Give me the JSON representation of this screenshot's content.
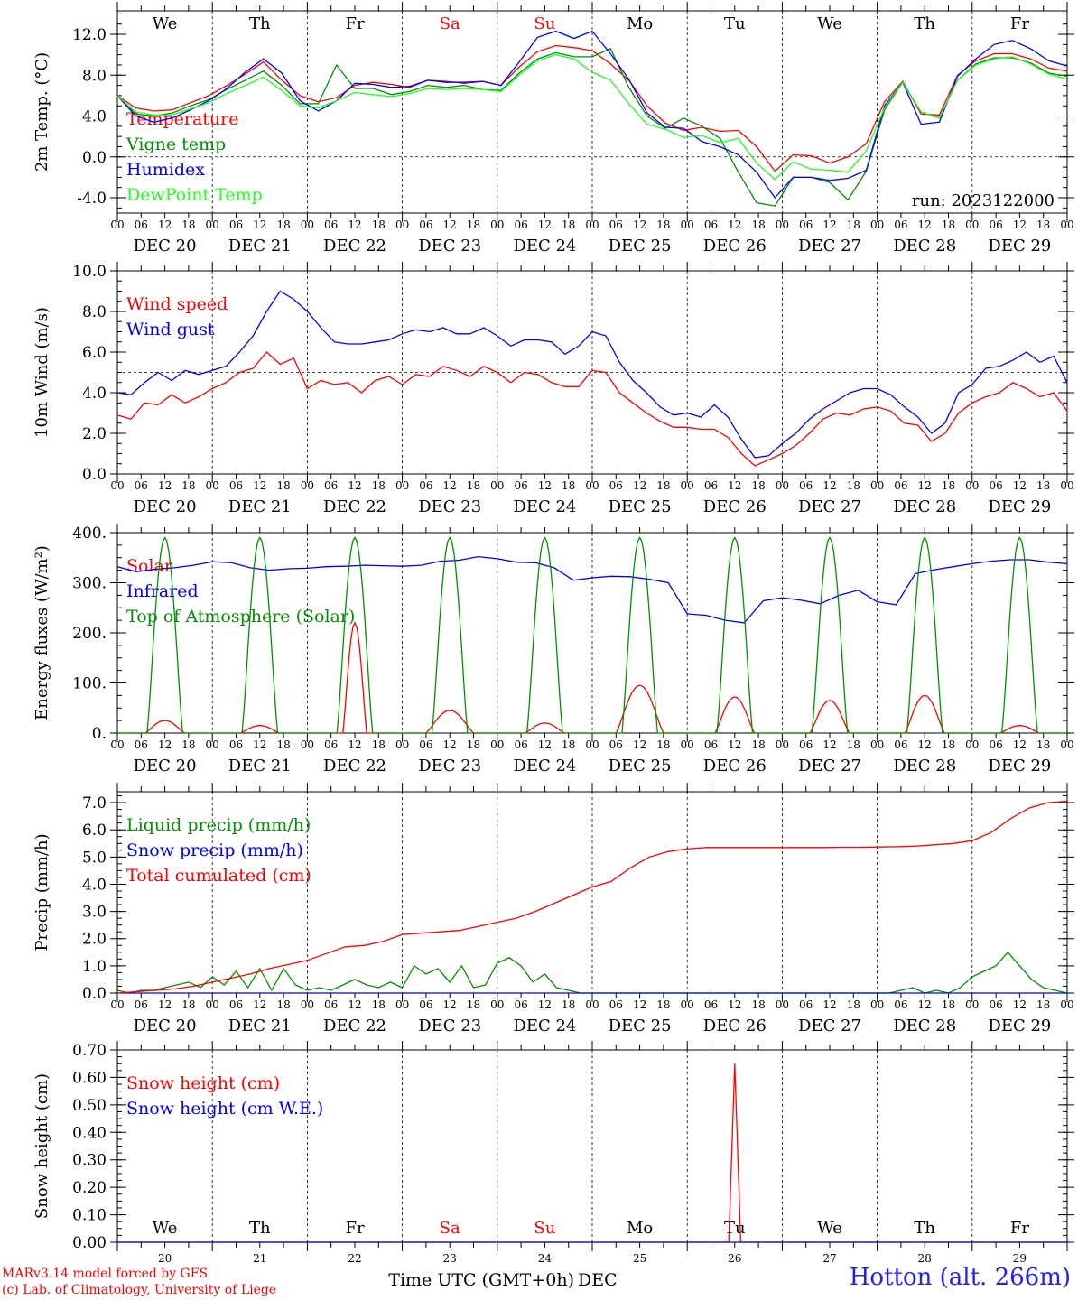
{
  "run_label": "run: 2023122000",
  "footer": {
    "model": "MARv3.14 model forced by GFS",
    "credit": "(c) Lab. of Climatology, University of Liege",
    "station": "Hotton (alt. 266m)",
    "time_axis_label": "Time UTC (GMT+0h)",
    "month_label": "DEC"
  },
  "day_letters": [
    "We",
    "Th",
    "Fr",
    "Sa",
    "Su",
    "Mo",
    "Tu",
    "We",
    "Th",
    "Fr"
  ],
  "weekend_days": [
    3,
    4
  ],
  "date_labels": [
    "DEC 20",
    "DEC 21",
    "DEC 22",
    "DEC 23",
    "DEC 24",
    "DEC 25",
    "DEC 26",
    "DEC 27",
    "DEC 28",
    "DEC 29"
  ],
  "day_numbers": [
    "20",
    "21",
    "22",
    "23",
    "24",
    "25",
    "26",
    "27",
    "28",
    "29"
  ],
  "hour_ticks": [
    "00",
    "06",
    "12",
    "18"
  ],
  "final_hour_tick": "00",
  "colors": {
    "red": "#ff0000",
    "dark_green": "#009000",
    "blue": "#0000ff",
    "light_green": "#20ff20",
    "weekend": "#ff0000"
  },
  "chart_data": [
    {
      "type": "line",
      "id": "temp",
      "ylabel": "2m Temp. (°C)",
      "ylim": [
        -5.5,
        14.3
      ],
      "yticks": [
        -4.0,
        0.0,
        4.0,
        8.0,
        12.0
      ],
      "ytick_labels": [
        "-4.0",
        "0.0",
        "4.0",
        "8.0",
        "12.0"
      ],
      "ref_line": 0,
      "x_hours_step": 6,
      "series": [
        {
          "name": "Temperature",
          "color": "#ff0000",
          "values": [
            6.0,
            4.8,
            4.5,
            4.6,
            5.3,
            6.0,
            7.0,
            8.1,
            9.3,
            7.5,
            6.0,
            5.4,
            5.8,
            7.0,
            7.3,
            7.1,
            6.8,
            7.5,
            7.4,
            7.2,
            7.4,
            7.0,
            8.8,
            10.3,
            10.9,
            10.7,
            10.4,
            9.1,
            7.5,
            5.0,
            3.3,
            2.6,
            2.9,
            2.5,
            2.6,
            1.0,
            -1.4,
            0.2,
            0.1,
            -0.6,
            0.0,
            1.3,
            5.4,
            7.4,
            4.2,
            4.1,
            8.0,
            9.4,
            10.1,
            10.1,
            9.6,
            8.7,
            8.4
          ]
        },
        {
          "name": "Vigne temp",
          "color": "#009000",
          "values": [
            6.0,
            4.2,
            4.0,
            4.3,
            5.0,
            5.6,
            6.6,
            7.5,
            8.4,
            7.0,
            5.2,
            5.2,
            9.0,
            6.7,
            6.7,
            6.1,
            6.4,
            7.0,
            6.8,
            7.0,
            6.6,
            6.5,
            8.2,
            9.6,
            10.2,
            9.8,
            9.8,
            10.6,
            6.8,
            4.0,
            2.8,
            3.8,
            3.0,
            1.8,
            -1.5,
            -4.5,
            -4.8,
            -2.0,
            -2.0,
            -2.5,
            -4.2,
            -1.4,
            4.6,
            7.3,
            4.4,
            3.8,
            7.5,
            9.1,
            9.7,
            9.7,
            9.2,
            8.2,
            7.9
          ]
        },
        {
          "name": "Humidex",
          "color": "#0000ff",
          "values": [
            6.0,
            4.0,
            3.4,
            3.8,
            4.6,
            5.5,
            6.7,
            8.3,
            9.6,
            8.2,
            5.5,
            4.5,
            5.5,
            7.2,
            7.1,
            6.8,
            6.9,
            7.5,
            7.3,
            7.3,
            7.4,
            7.0,
            9.3,
            11.7,
            12.3,
            11.6,
            12.3,
            10.1,
            7.6,
            4.3,
            2.9,
            2.8,
            1.5,
            1.0,
            0.2,
            -1.5,
            -4.0,
            -2.0,
            -2.0,
            -2.3,
            -2.1,
            -1.3,
            5.0,
            7.3,
            3.2,
            3.4,
            7.9,
            9.6,
            11.0,
            11.4,
            10.6,
            9.4,
            8.9
          ]
        },
        {
          "name": "DewPoint Temp",
          "color": "#20ff20",
          "values": [
            6.0,
            4.4,
            4.1,
            4.1,
            4.7,
            5.3,
            6.2,
            7.0,
            7.8,
            6.5,
            5.0,
            4.8,
            5.5,
            6.3,
            6.1,
            5.9,
            6.2,
            6.7,
            6.6,
            6.7,
            6.6,
            6.4,
            8.0,
            9.4,
            10.0,
            9.6,
            8.3,
            7.5,
            5.2,
            3.2,
            2.7,
            1.9,
            2.1,
            1.4,
            1.8,
            -0.6,
            -2.2,
            -0.5,
            -1.2,
            -1.3,
            -1.5,
            0.6,
            4.8,
            7.3,
            4.4,
            3.8,
            7.5,
            9.0,
            9.6,
            9.8,
            9.1,
            8.1,
            7.6
          ]
        }
      ]
    },
    {
      "type": "line",
      "id": "wind",
      "ylabel": "10m Wind (m/s)",
      "ylim": [
        0,
        10
      ],
      "yticks": [
        0,
        2,
        4,
        6,
        8,
        10
      ],
      "ytick_labels": [
        "0.0",
        "2.0",
        "4.0",
        "6.0",
        "8.0",
        "10.0"
      ],
      "ref_line": 5,
      "x_hours_step": 6,
      "series": [
        {
          "name": "Wind speed",
          "color": "#ff0000",
          "values": [
            2.9,
            2.7,
            3.5,
            3.4,
            3.9,
            3.5,
            3.8,
            4.2,
            4.5,
            5.0,
            5.2,
            6.0,
            5.4,
            5.7,
            4.2,
            4.6,
            4.4,
            4.5,
            4.0,
            4.6,
            4.8,
            4.4,
            4.9,
            4.8,
            5.3,
            5.1,
            4.8,
            5.3,
            5.0,
            4.5,
            5.0,
            4.9,
            4.5,
            4.3,
            4.3,
            5.1,
            5.0,
            4.0,
            3.5,
            3.0,
            2.6,
            2.3,
            2.3,
            2.2,
            2.2,
            1.8,
            1.0,
            0.4,
            0.7,
            1.0,
            1.4,
            2.0,
            2.7,
            3.0,
            2.9,
            3.2,
            3.3,
            3.1,
            2.5,
            2.4,
            1.6,
            2.0,
            3.0,
            3.5,
            3.8,
            4.0,
            4.5,
            4.2,
            3.8,
            4.0,
            3.1
          ]
        },
        {
          "name": "Wind gust",
          "color": "#0000ff",
          "values": [
            4.0,
            3.9,
            4.5,
            5.0,
            4.6,
            5.1,
            4.9,
            5.1,
            5.3,
            6.0,
            6.8,
            8.0,
            9.0,
            8.6,
            8.0,
            7.2,
            6.5,
            6.4,
            6.4,
            6.5,
            6.6,
            6.9,
            7.1,
            7.0,
            7.2,
            6.9,
            6.9,
            7.2,
            6.8,
            6.3,
            6.6,
            6.6,
            6.5,
            5.9,
            6.3,
            7.0,
            6.8,
            5.5,
            4.6,
            4.0,
            3.3,
            2.9,
            3.0,
            2.8,
            3.4,
            2.8,
            1.7,
            0.8,
            0.9,
            1.5,
            2.0,
            2.7,
            3.2,
            3.6,
            4.0,
            4.2,
            4.2,
            3.9,
            3.3,
            2.8,
            2.0,
            2.5,
            4.0,
            4.4,
            5.2,
            5.3,
            5.6,
            6.0,
            5.5,
            5.8,
            4.5
          ]
        }
      ]
    },
    {
      "type": "line",
      "id": "energy",
      "ylabel": "Energy fluxes (W/m²)",
      "ylim": [
        0,
        400
      ],
      "yticks": [
        0,
        100,
        200,
        300,
        400
      ],
      "ytick_labels": [
        "0.",
        "100.",
        "200.",
        "300.",
        "400."
      ],
      "x_hours_step": 6,
      "series": [
        {
          "name": "Solar",
          "color": "#ff0000",
          "peak_hours": [
            12,
            12,
            12,
            12,
            12,
            12,
            12,
            12,
            12,
            12
          ],
          "peak_values": [
            25,
            15,
            220,
            45,
            20,
            95,
            72,
            65,
            75,
            15
          ],
          "halfwidth_hours": [
            5,
            5,
            3,
            6,
            5,
            6,
            5,
            5,
            5,
            5
          ]
        },
        {
          "name": "Infrared",
          "color": "#0000ff",
          "values": [
            332,
            322,
            327,
            330,
            335,
            342,
            340,
            330,
            325,
            328,
            329,
            332,
            333,
            335,
            334,
            333,
            335,
            343,
            345,
            352,
            348,
            341,
            340,
            330,
            305,
            310,
            313,
            312,
            307,
            300,
            238,
            235,
            225,
            220,
            264,
            270,
            265,
            258,
            275,
            285,
            262,
            256,
            318,
            326,
            332,
            338,
            343,
            346,
            346,
            341,
            338
          ]
        },
        {
          "name": "Top of Atmosphere (Solar)",
          "color": "#009000",
          "peak_hours": [
            12,
            12,
            12,
            12,
            12,
            12,
            12,
            12,
            12,
            12
          ],
          "peak_values": [
            390,
            390,
            390,
            390,
            390,
            390,
            390,
            390,
            390,
            390
          ],
          "halfwidth_hours": [
            4.5,
            4.5,
            4.5,
            4.5,
            4.5,
            4.5,
            4.5,
            4.5,
            4.5,
            4.5
          ]
        }
      ]
    },
    {
      "type": "line",
      "id": "precip",
      "ylabel": "Precip (mm/h)",
      "ylim": [
        0,
        7.4
      ],
      "yticks": [
        0,
        1,
        2,
        3,
        4,
        5,
        6,
        7
      ],
      "ytick_labels": [
        "0.0",
        "1.0",
        "2.0",
        "3.0",
        "4.0",
        "5.0",
        "6.0",
        "7.0"
      ],
      "x_hours_step": 6,
      "series": [
        {
          "name": "Liquid precip (mm/h)",
          "color": "#009000",
          "values": [
            0.1,
            0.0,
            0.1,
            0.1,
            0.2,
            0.3,
            0.4,
            0.2,
            0.6,
            0.3,
            0.8,
            0.2,
            0.9,
            0.1,
            0.9,
            0.3,
            0.1,
            0.2,
            0.1,
            0.3,
            0.5,
            0.3,
            0.2,
            0.4,
            0.2,
            1.0,
            0.7,
            0.9,
            0.4,
            1.0,
            0.2,
            0.3,
            1.1,
            1.3,
            1.0,
            0.4,
            0.7,
            0.2,
            0.1,
            0.0,
            0.0,
            0.0,
            0.0,
            0.0,
            0.0,
            0.0,
            0.0,
            0.0,
            0.0,
            0.0,
            0.0,
            0.0,
            0.0,
            0.0,
            0.0,
            0.0,
            0.0,
            0.0,
            0.0,
            0.0,
            0.0,
            0.0,
            0.0,
            0.0,
            0.0,
            0.0,
            0.1,
            0.2,
            0.0,
            0.1,
            0.0,
            0.2,
            0.6,
            0.8,
            1.0,
            1.5,
            1.0,
            0.5,
            0.2,
            0.1,
            0.0
          ]
        },
        {
          "name": "Snow precip (mm/h)",
          "color": "#0000ff",
          "values": [
            0,
            0,
            0,
            0,
            0,
            0,
            0,
            0,
            0,
            0,
            0,
            0,
            0,
            0,
            0,
            0,
            0,
            0,
            0,
            0,
            0,
            0,
            0,
            0,
            0,
            0,
            0,
            0,
            0,
            0,
            0,
            0,
            0,
            0,
            0,
            0,
            0,
            0,
            0,
            0,
            0,
            0,
            0,
            0,
            0,
            0,
            0,
            0,
            0,
            0,
            0,
            0,
            0,
            0,
            0,
            0,
            0,
            0,
            0,
            0,
            0,
            0,
            0,
            0,
            0,
            0,
            0,
            0,
            0,
            0,
            0,
            0,
            0,
            0,
            0,
            0,
            0,
            0,
            0,
            0,
            0
          ]
        },
        {
          "name": "Total cumulated (cm)",
          "color": "#ff0000",
          "values": [
            0.0,
            0.05,
            0.1,
            0.15,
            0.25,
            0.4,
            0.55,
            0.7,
            0.9,
            1.05,
            1.2,
            1.45,
            1.7,
            1.75,
            1.9,
            2.15,
            2.2,
            2.25,
            2.3,
            2.45,
            2.6,
            2.75,
            3.0,
            3.3,
            3.6,
            3.9,
            4.1,
            4.6,
            5.0,
            5.2,
            5.3,
            5.35,
            5.35,
            5.35,
            5.35,
            5.35,
            5.35,
            5.35,
            5.36,
            5.36,
            5.37,
            5.38,
            5.4,
            5.45,
            5.5,
            5.6,
            5.9,
            6.4,
            6.8,
            7.0,
            7.05
          ]
        }
      ]
    },
    {
      "type": "line",
      "id": "snow",
      "ylabel": "Snow height (cm)",
      "ylim": [
        0,
        0.7
      ],
      "yticks": [
        0,
        0.1,
        0.2,
        0.3,
        0.4,
        0.5,
        0.6,
        0.7
      ],
      "ytick_labels": [
        "0.00",
        "0.10",
        "0.20",
        "0.30",
        "0.40",
        "0.50",
        "0.60",
        "0.70"
      ],
      "x_hours_step": 6,
      "series": [
        {
          "name": "Snow height (cm)",
          "color": "#ff0000",
          "spike_hour": 156,
          "spike_value": 0.65
        },
        {
          "name": "Snow height (cm W.E.)",
          "color": "#0000ff",
          "values": [
            0,
            0
          ]
        }
      ]
    }
  ]
}
